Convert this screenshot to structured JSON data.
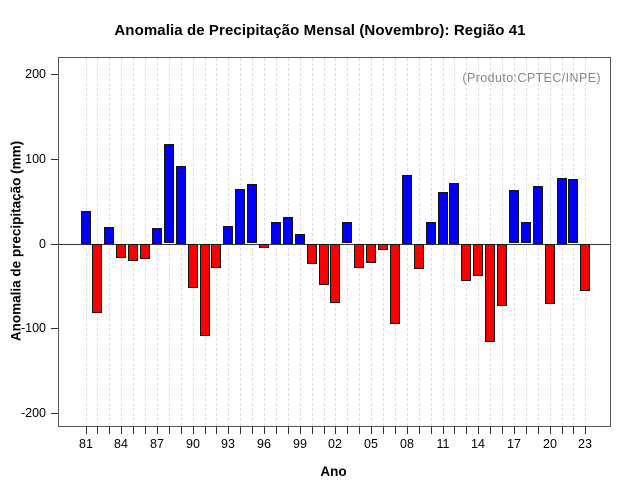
{
  "page": {
    "background": "#ffffff"
  },
  "chart_data": {
    "type": "bar",
    "title": "Anomalia de Precipitação Mensal (Novembro): Região 41",
    "xlabel": "Ano",
    "ylabel": "Anomalia de precipitação (mm)",
    "annotation": "(Produto:CPTEC/INPE)",
    "years": [
      1981,
      1982,
      1983,
      1984,
      1985,
      1986,
      1987,
      1988,
      1989,
      1990,
      1991,
      1992,
      1993,
      1994,
      1995,
      1996,
      1997,
      1998,
      1999,
      2000,
      2001,
      2002,
      2003,
      2004,
      2005,
      2006,
      2007,
      2008,
      2009,
      2010,
      2011,
      2012,
      2013,
      2014,
      2015,
      2016,
      2017,
      2018,
      2019,
      2020,
      2021,
      2022,
      2023
    ],
    "values": [
      39,
      -81,
      20,
      -17,
      -20,
      -18,
      19,
      117,
      92,
      -52,
      -109,
      -28,
      21,
      65,
      70,
      -5,
      26,
      32,
      12,
      -24,
      -48,
      -70,
      25,
      -28,
      -22,
      -7,
      -94,
      81,
      -30,
      26,
      61,
      72,
      -44,
      -38,
      -115,
      -73,
      63,
      25,
      68,
      -71,
      78,
      76,
      -55
    ],
    "xtick_labels": [
      "81",
      "84",
      "87",
      "90",
      "93",
      "96",
      "99",
      "02",
      "05",
      "08",
      "11",
      "14",
      "17",
      "20",
      "23"
    ],
    "xtick_step": 3,
    "yticks": [
      -200,
      -100,
      0,
      100,
      200
    ],
    "ylim": [
      -215,
      219
    ],
    "grid": "vertical-dashed-per-year",
    "legend": null,
    "colors": {
      "positive": "#0000fa",
      "negative": "#fa0000",
      "bar_border": "#141414",
      "annotation": "#878787",
      "grid": "#dedede",
      "axis_box": "#555555",
      "zero_line": "#333333",
      "text": "#000000"
    }
  }
}
